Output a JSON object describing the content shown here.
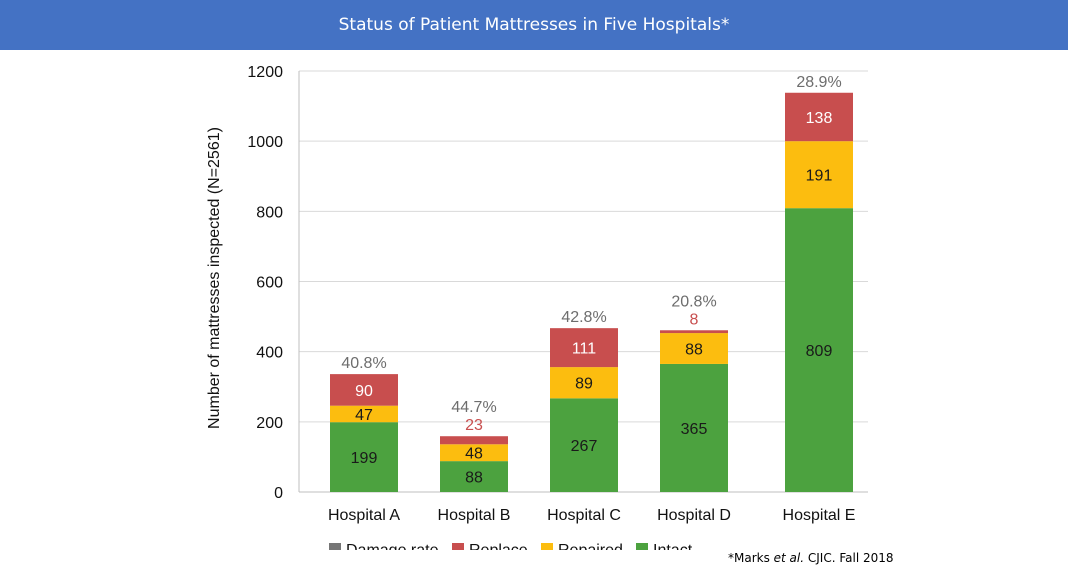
{
  "header": {
    "title": "Status of Patient Mattresses in Five Hospitals*"
  },
  "footnote": {
    "prefix": "*Marks ",
    "italic": "et al.",
    "suffix": " CJIC. Fall 2018"
  },
  "chart_data": {
    "type": "bar",
    "stacked": true,
    "categories": [
      "Hospital A",
      "Hospital B",
      "Hospital C",
      "Hospital D",
      "Hospital E"
    ],
    "series": [
      {
        "name": "Intact",
        "values": [
          199,
          88,
          267,
          365,
          809
        ],
        "color": "#4ca23f",
        "label_color": "#1a1a1a"
      },
      {
        "name": "Repaired",
        "values": [
          47,
          48,
          89,
          88,
          191
        ],
        "color": "#fcbd0f",
        "label_color": "#1a1a1a"
      },
      {
        "name": "Replace",
        "values": [
          90,
          23,
          111,
          8,
          138
        ],
        "color": "#c84e4e",
        "label_color": "#ffffff"
      }
    ],
    "damage_rate": {
      "name": "Damage rate",
      "labels": [
        "40.8%",
        "44.7%",
        "42.8%",
        "20.8%",
        "28.9%"
      ],
      "color": "#6d6d6d"
    },
    "legend": {
      "items": [
        "Damage rate",
        "Replace",
        "Repaired",
        "Intact"
      ],
      "colors": [
        "#767676",
        "#c84e4e",
        "#fcbd0f",
        "#4ca23f"
      ],
      "placement": "bottom"
    },
    "ylabel": "Number of mattresses inspected (N=2561)",
    "ylim": [
      0,
      1200
    ],
    "yticks": [
      0,
      200,
      400,
      600,
      800,
      1000,
      1200
    ],
    "grid": true
  }
}
